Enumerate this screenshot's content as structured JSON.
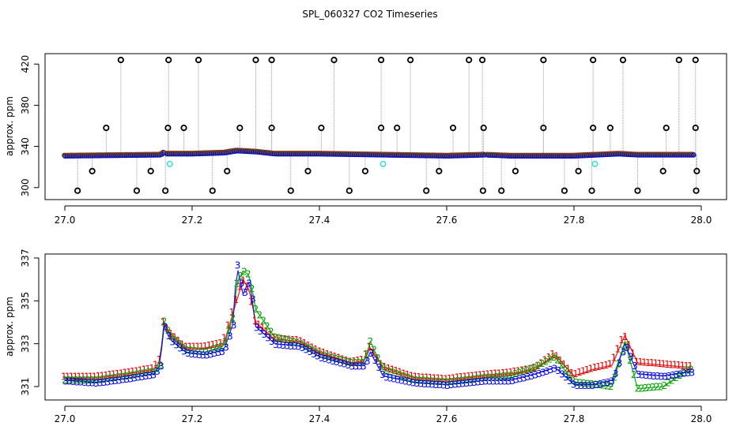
{
  "title": "SPL_060327  CO2 Timeseries",
  "chart_data": [
    {
      "type": "scatter",
      "ylabel": "approx. ppm",
      "xlim": [
        27.0,
        28.0
      ],
      "ylim": [
        290,
        428
      ],
      "xticks": [
        "27.0",
        "27.2",
        "27.4",
        "27.6",
        "27.8",
        "28.0"
      ],
      "yticks": [
        "300",
        "340",
        "380",
        "420"
      ],
      "grid": false,
      "colors": {
        "series1": "#e60000",
        "series2": "#00a000",
        "series3": "#0000e0",
        "outlier": "#000000",
        "flag": "#33dddd",
        "spike_line": "#999999"
      },
      "baseline": {
        "x": [
          27.0,
          27.15,
          27.155,
          27.16,
          27.2,
          27.25,
          27.27,
          27.3,
          27.33,
          27.4,
          27.5,
          27.6,
          27.66,
          27.7,
          27.8,
          27.87,
          27.9,
          27.99
        ],
        "y": [
          331,
          332,
          334,
          333,
          333,
          334,
          336,
          335,
          333,
          333,
          332,
          331,
          332,
          331,
          331,
          333,
          332,
          332
        ]
      },
      "outliers_high": [
        27.088,
        27.163,
        27.21,
        27.3,
        27.325,
        27.423,
        27.497,
        27.543,
        27.635,
        27.656,
        27.752,
        27.83,
        27.877,
        27.965,
        27.991
      ],
      "outliers_mid": [
        27.065,
        27.162,
        27.187,
        27.275,
        27.325,
        27.403,
        27.497,
        27.522,
        27.61,
        27.658,
        27.752,
        27.83,
        27.857,
        27.945,
        27.991
      ],
      "outliers_low_a": [
        27.043,
        27.135,
        27.255,
        27.382,
        27.472,
        27.588,
        27.708,
        27.807,
        27.94,
        27.993
      ],
      "outliers_low_b": [
        27.02,
        27.113,
        27.158,
        27.232,
        27.355,
        27.447,
        27.568,
        27.657,
        27.686,
        27.785,
        27.828,
        27.9,
        27.992
      ],
      "flags": [
        {
          "x": 27.165,
          "y": 323
        },
        {
          "x": 27.5,
          "y": 323
        },
        {
          "x": 27.833,
          "y": 323
        }
      ]
    },
    {
      "type": "line",
      "ylabel": "approx. ppm",
      "xlim": [
        27.0,
        28.0
      ],
      "ylim": [
        330.3,
        337.3
      ],
      "xticks": [
        "27.0",
        "27.2",
        "27.4",
        "27.6",
        "27.8",
        "28.0"
      ],
      "yticks": [
        "331",
        "333",
        "335",
        "337"
      ],
      "grid": false,
      "series": [
        {
          "name": "1",
          "color": "#e60000",
          "x": [
            27.0,
            27.05,
            27.1,
            27.14,
            27.15,
            27.155,
            27.165,
            27.19,
            27.22,
            27.25,
            27.265,
            27.28,
            27.29,
            27.3,
            27.33,
            27.37,
            27.4,
            27.45,
            27.47,
            27.48,
            27.5,
            27.55,
            27.6,
            27.66,
            27.7,
            27.74,
            27.77,
            27.8,
            27.83,
            27.86,
            27.88,
            27.9,
            27.94,
            27.98
          ],
          "y": [
            331.4,
            331.4,
            331.6,
            331.8,
            332.2,
            334.0,
            333.5,
            332.8,
            332.8,
            333.0,
            334.5,
            336.0,
            335.5,
            334.0,
            333.2,
            333.1,
            332.6,
            332.1,
            332.2,
            332.8,
            331.9,
            331.4,
            331.3,
            331.5,
            331.6,
            331.8,
            332.5,
            331.5,
            331.8,
            332.0,
            333.4,
            332.1,
            332.0,
            331.9
          ]
        },
        {
          "name": "2",
          "color": "#00a000",
          "x": [
            27.0,
            27.05,
            27.1,
            27.14,
            27.15,
            27.155,
            27.165,
            27.19,
            27.22,
            27.25,
            27.265,
            27.27,
            27.28,
            27.29,
            27.3,
            27.33,
            27.37,
            27.4,
            27.45,
            27.47,
            27.48,
            27.5,
            27.55,
            27.6,
            27.66,
            27.7,
            27.74,
            27.77,
            27.8,
            27.83,
            27.86,
            27.88,
            27.9,
            27.94,
            27.98
          ],
          "y": [
            331.3,
            331.3,
            331.5,
            331.7,
            332.0,
            334.1,
            333.4,
            332.7,
            332.6,
            332.9,
            334.3,
            335.8,
            336.4,
            336.2,
            334.6,
            333.3,
            333.0,
            332.5,
            332.1,
            332.1,
            333.1,
            331.8,
            331.3,
            331.2,
            331.4,
            331.5,
            331.9,
            332.4,
            331.2,
            331.1,
            331.0,
            333.1,
            330.9,
            331.0,
            331.8
          ]
        },
        {
          "name": "3",
          "color": "#0000e0",
          "x": [
            27.0,
            27.05,
            27.1,
            27.14,
            27.15,
            27.155,
            27.165,
            27.19,
            27.22,
            27.25,
            27.265,
            27.27,
            27.28,
            27.29,
            27.3,
            27.33,
            27.37,
            27.4,
            27.45,
            27.47,
            27.48,
            27.5,
            27.55,
            27.6,
            27.66,
            27.7,
            27.74,
            27.77,
            27.8,
            27.83,
            27.86,
            27.88,
            27.9,
            27.94,
            27.98
          ],
          "y": [
            331.3,
            331.2,
            331.4,
            331.6,
            332.0,
            333.9,
            333.2,
            332.6,
            332.5,
            332.7,
            334.0,
            336.7,
            335.3,
            336.0,
            333.8,
            333.0,
            332.9,
            332.4,
            332.0,
            332.0,
            332.6,
            331.5,
            331.2,
            331.1,
            331.3,
            331.3,
            331.6,
            331.9,
            331.1,
            331.1,
            331.3,
            333.0,
            331.6,
            331.5,
            331.7
          ]
        }
      ]
    }
  ]
}
